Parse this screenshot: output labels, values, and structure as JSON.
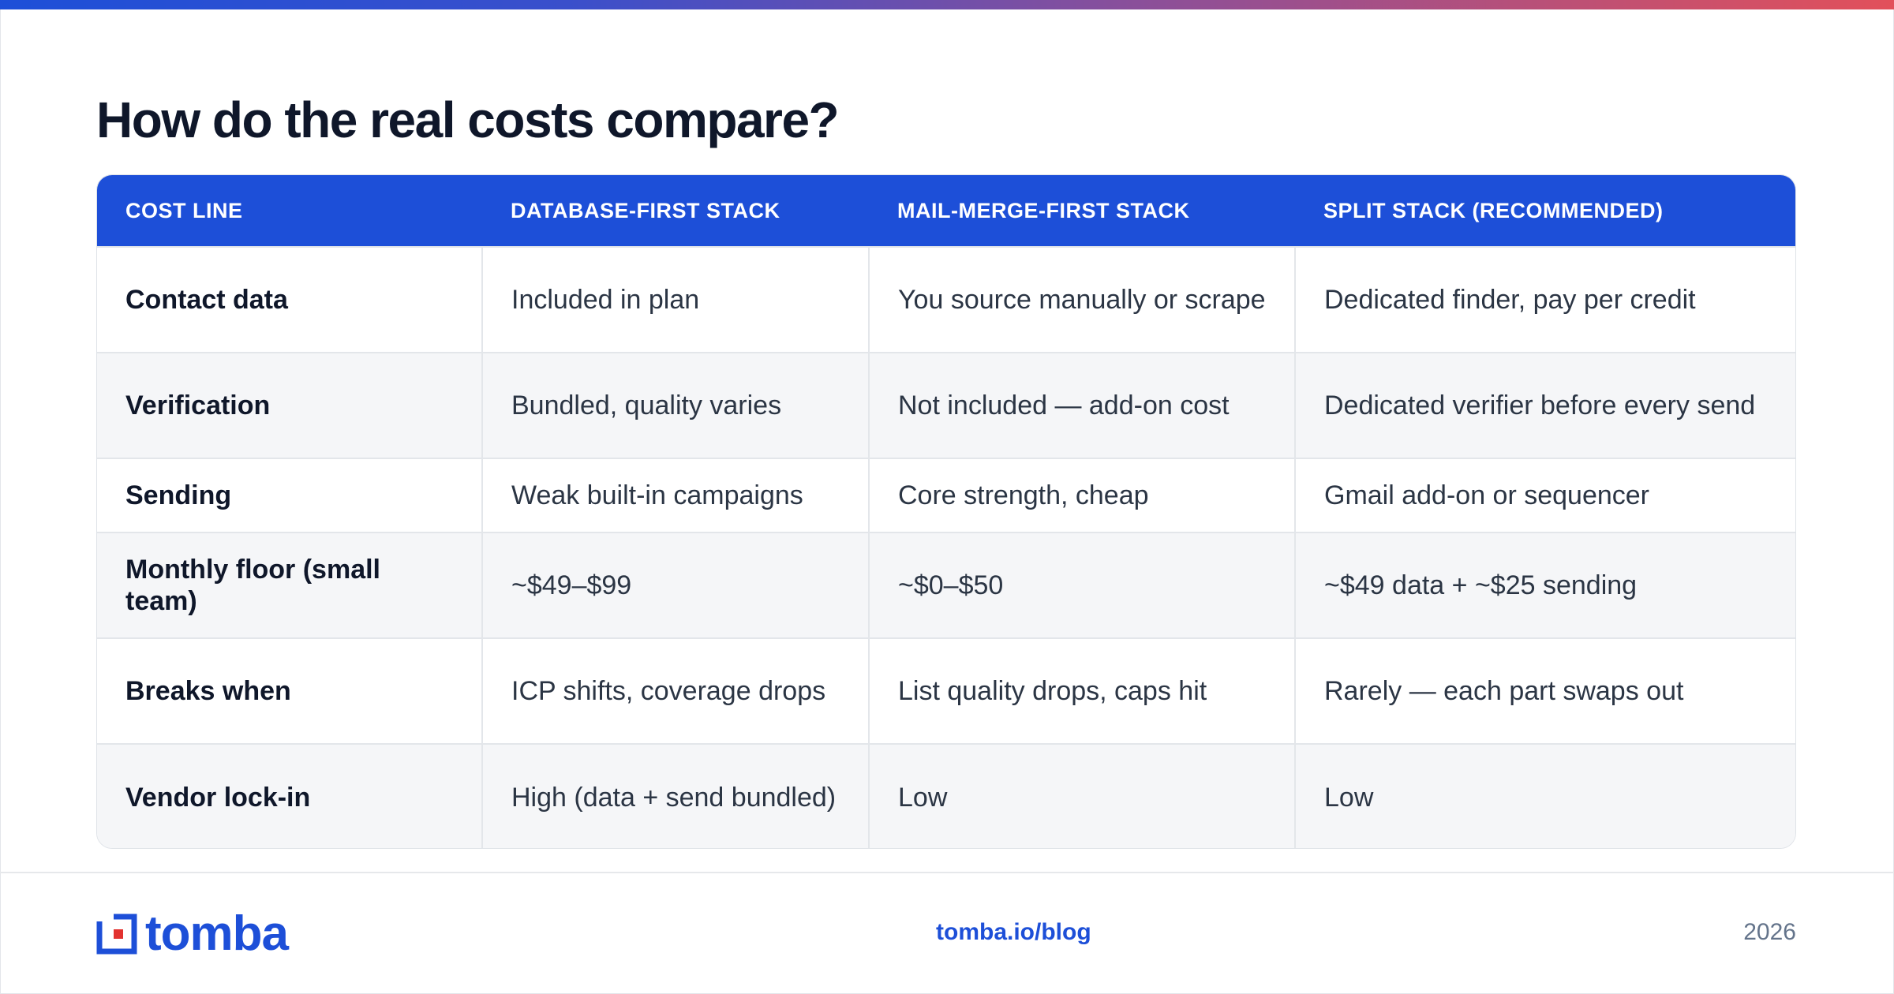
{
  "title": "How do the real costs compare?",
  "table": {
    "headers": [
      "COST LINE",
      "DATABASE-FIRST STACK",
      "MAIL-MERGE-FIRST STACK",
      "SPLIT STACK (RECOMMENDED)"
    ],
    "rows": [
      [
        "Contact data",
        "Included in plan",
        "You source manually or scrape",
        "Dedicated finder, pay per credit"
      ],
      [
        "Verification",
        "Bundled, quality varies",
        "Not included — add-on cost",
        "Dedicated verifier before every send"
      ],
      [
        "Sending",
        "Weak built-in campaigns",
        "Core strength, cheap",
        "Gmail add-on or sequencer"
      ],
      [
        "Monthly floor (small team)",
        "~$49–$99",
        "~$0–$50",
        "~$49 data + ~$25 sending"
      ],
      [
        "Breaks when",
        "ICP shifts, coverage drops",
        "List quality drops, caps hit",
        "Rarely — each part swaps out"
      ],
      [
        "Vendor lock-in",
        "High (data + send bundled)",
        "Low",
        "Low"
      ]
    ]
  },
  "footer": {
    "brand": "tomba",
    "url": "tomba.io/blog",
    "year": "2026"
  },
  "colors": {
    "accent": "#1d4fd8",
    "logo_red": "#e2322f"
  },
  "icons": {
    "logo": "tomba-logo-icon"
  }
}
